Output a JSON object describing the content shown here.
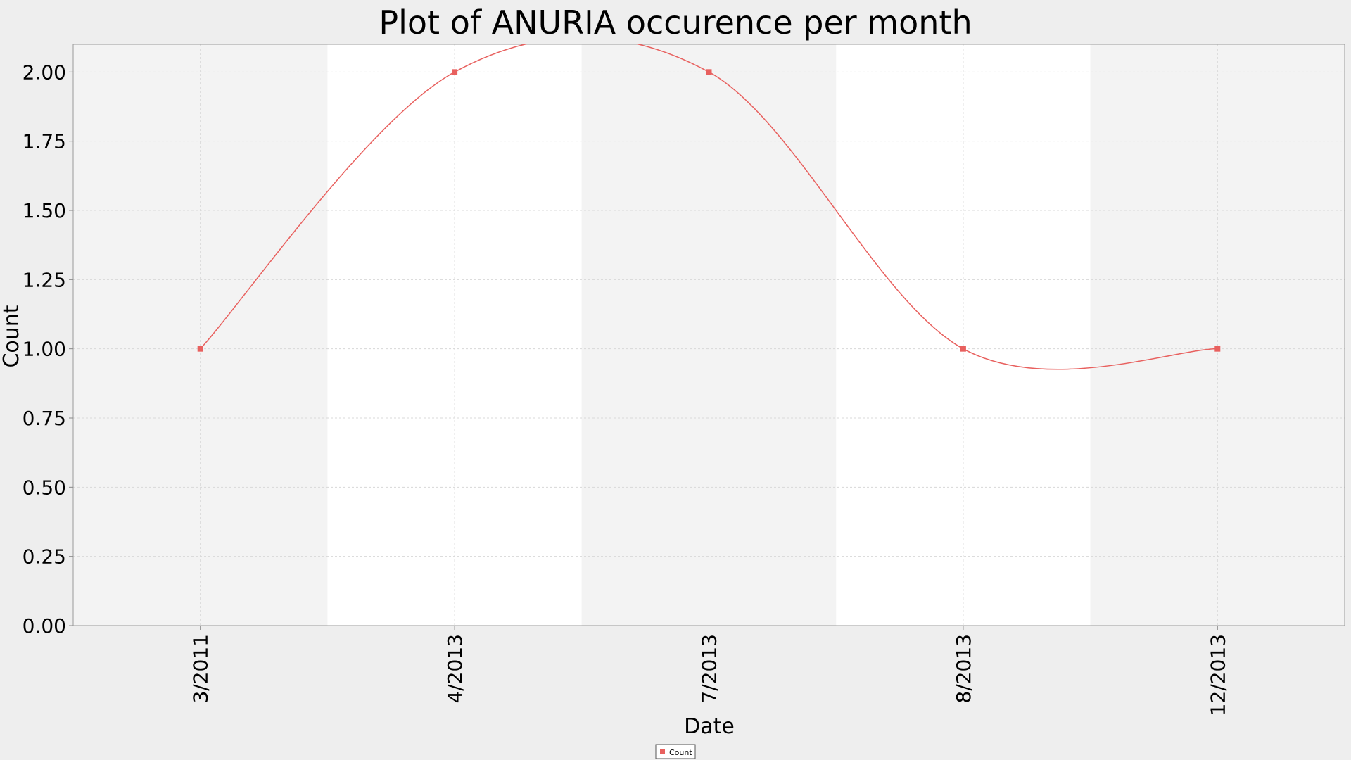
{
  "chart_data": {
    "type": "line",
    "title": "Plot of ANURIA occurence per month",
    "xlabel": "Date",
    "ylabel": "Count",
    "categories": [
      "3/2011",
      "4/2013",
      "7/2013",
      "8/2013",
      "12/2013"
    ],
    "series": [
      {
        "name": "Count",
        "values": [
          1,
          2,
          2,
          1,
          1
        ],
        "color": "#e8605e",
        "marker": "square",
        "smoothed": true
      }
    ],
    "ylim": [
      0,
      2.1
    ],
    "yticks": [
      0,
      0.25,
      0.5,
      0.75,
      1.0,
      1.25,
      1.5,
      1.75,
      2.0
    ],
    "ytick_labels": [
      "0.00",
      "0.25",
      "0.50",
      "0.75",
      "1.00",
      "1.25",
      "1.50",
      "1.75",
      "2.00"
    ],
    "grid": true,
    "legend": "bottom-center",
    "colors": {
      "page_background": "#eeeeee",
      "band_shaded": "#f3f3f3",
      "band_white": "#ffffff",
      "grid": "#d8d8d8",
      "axis": "#888888",
      "text": "#000000"
    }
  }
}
